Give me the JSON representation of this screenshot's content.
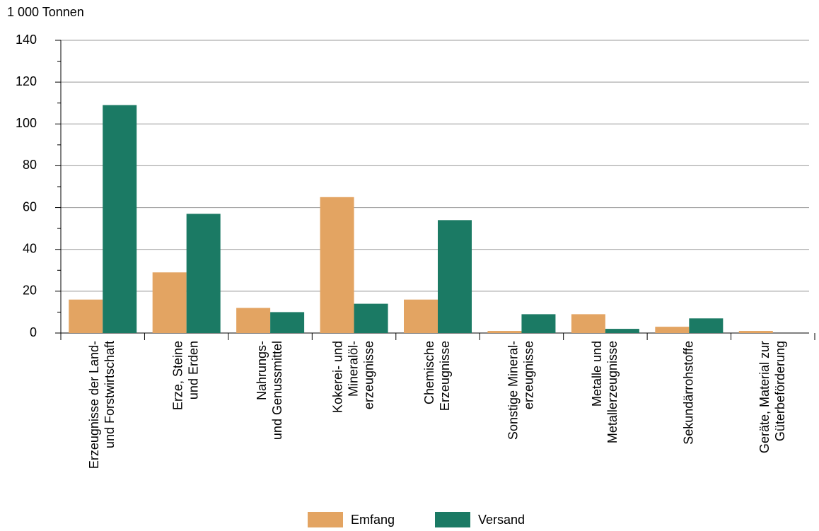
{
  "chart_data": {
    "type": "bar",
    "y_label": "1 000 Tonnen",
    "categories": [
      "Erzeugnisse der Land-\nund Forstwirtschaft",
      "Erze, Steine\nund Erden",
      "Nahrungs-\nund Genussmittel",
      "Kokerei- und\nMineralöl-\nerzeugnisse",
      "Chemische\nErzeugnisse",
      "Sonstige Mineral-\nerzeugnisse",
      "Metalle und\nMetallerzeugnisse",
      "Sekundärrohstoffe",
      "Geräte, Material zur\nGüterbeförderung"
    ],
    "series": [
      {
        "name": "Emfang",
        "color": "#e3a462",
        "values": [
          16,
          29,
          12,
          65,
          16,
          1,
          9,
          3,
          1
        ]
      },
      {
        "name": "Versand",
        "color": "#1b7a64",
        "values": [
          109,
          57,
          10,
          14,
          54,
          9,
          2,
          7,
          0
        ]
      }
    ],
    "ylim": [
      0,
      140
    ],
    "yticks": [
      0,
      20,
      40,
      60,
      80,
      100,
      120,
      140
    ],
    "grid": true,
    "legend": "bottom"
  }
}
